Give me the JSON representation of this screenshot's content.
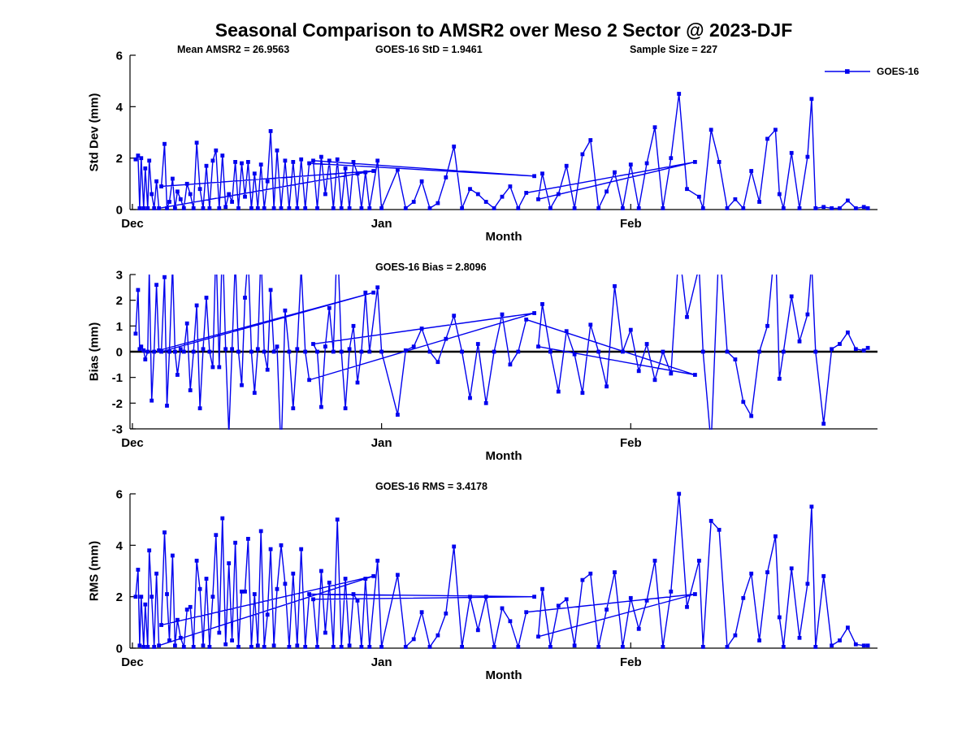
{
  "title": "Seasonal Comparison to AMSR2 over Meso 2 Sector @ 2023-DJF",
  "legend": {
    "label": "GOES-16"
  },
  "colors": {
    "line": "#0000EE",
    "axis": "#000000",
    "zero_line": "#000000"
  },
  "x_axis": {
    "label": "Month",
    "tick_labels": [
      "Dec",
      "Jan",
      "Feb"
    ],
    "tick_positions": [
      0,
      31,
      62
    ],
    "xlim": [
      -0.3,
      92.7
    ]
  },
  "samples": {
    "x": [
      0.4,
      0.7,
      0.9,
      1.1,
      1.4,
      1.6,
      1.9,
      2.1,
      2.4,
      2.7,
      3.0,
      3.3,
      30.0,
      3.6,
      4.0,
      4.3,
      4.6,
      5.0,
      5.3,
      5.6,
      6.0,
      6.4,
      6.8,
      7.2,
      7.6,
      8.0,
      8.4,
      8.8,
      9.2,
      9.6,
      10.0,
      10.4,
      10.8,
      11.2,
      11.6,
      12.0,
      12.4,
      12.8,
      13.2,
      13.6,
      14.0,
      14.4,
      14.8,
      15.2,
      15.6,
      16.0,
      16.4,
      16.8,
      17.2,
      17.6,
      18.0,
      18.5,
      19.0,
      19.5,
      20.0,
      20.5,
      21.0,
      21.5,
      22.0,
      50.0,
      22.5,
      23.0,
      23.5,
      24.0,
      24.5,
      25.0,
      25.5,
      26.0,
      26.5,
      27.0,
      27.5,
      28.0,
      28.5,
      29.0,
      29.5,
      30.5,
      31.0,
      33.0,
      34.0,
      35.0,
      36.0,
      37.0,
      38.0,
      39.0,
      40.0,
      41.0,
      42.0,
      43.0,
      44.0,
      45.0,
      46.0,
      47.0,
      48.0,
      49.0,
      70.0,
      50.5,
      51.0,
      52.0,
      53.0,
      54.0,
      55.0,
      56.0,
      57.0,
      58.0,
      59.0,
      60.0,
      61.0,
      62.0,
      63.0,
      64.0,
      65.0,
      66.0,
      67.0,
      68.0,
      69.0,
      70.5,
      71.0,
      72.0,
      73.0,
      74.0,
      75.0,
      76.0,
      77.0,
      78.0,
      79.0,
      80.0,
      80.5,
      81.0,
      82.0,
      83.0,
      84.0,
      84.5,
      85.0,
      86.0,
      87.0,
      88.0,
      89.0,
      90.0,
      91.0,
      91.5
    ]
  },
  "chart_data": [
    {
      "type": "line",
      "name": "std-dev",
      "ylabel": "Std Dev (mm)",
      "xlabel": "Month",
      "ylim": [
        0,
        6
      ],
      "yticks": [
        0,
        2,
        4,
        6
      ],
      "grid": false,
      "legend_position": "top-right-outside",
      "annotations": [
        {
          "text": "Mean AMSR2 = 26.9563"
        },
        {
          "text": "GOES-16 StD = 1.9461"
        },
        {
          "text": "Sample Size = 227"
        }
      ],
      "series": [
        {
          "name": "GOES-16",
          "values": [
            1.95,
            2.1,
            0.05,
            2.0,
            0.05,
            1.6,
            0.05,
            1.9,
            0.6,
            0.05,
            1.1,
            0.05,
            1.5,
            0.9,
            2.55,
            0.05,
            0.3,
            1.2,
            0.05,
            0.7,
            0.4,
            0.05,
            1.0,
            0.6,
            0.05,
            2.6,
            0.8,
            0.05,
            1.7,
            0.05,
            1.9,
            2.3,
            0.05,
            2.1,
            0.1,
            0.6,
            0.3,
            1.85,
            0.05,
            1.8,
            0.5,
            1.85,
            0.05,
            1.4,
            0.05,
            1.75,
            0.05,
            1.1,
            3.05,
            0.05,
            2.3,
            0.05,
            1.9,
            0.05,
            1.85,
            0.05,
            1.95,
            0.05,
            1.8,
            1.3,
            1.9,
            0.05,
            2.05,
            0.6,
            1.9,
            0.05,
            1.95,
            0.05,
            1.6,
            0.05,
            1.85,
            1.4,
            0.05,
            1.45,
            0.05,
            1.9,
            0.05,
            1.55,
            0.05,
            0.3,
            1.1,
            0.05,
            0.25,
            1.25,
            2.45,
            0.05,
            0.8,
            0.6,
            0.3,
            0.05,
            0.5,
            0.9,
            0.05,
            0.65,
            1.85,
            0.4,
            1.4,
            0.05,
            0.6,
            1.7,
            0.05,
            2.15,
            2.7,
            0.05,
            0.7,
            1.45,
            0.05,
            1.75,
            0.05,
            1.8,
            3.2,
            0.05,
            2.0,
            4.5,
            0.8,
            0.5,
            0.05,
            3.1,
            1.85,
            0.05,
            0.4,
            0.05,
            1.5,
            0.3,
            2.75,
            3.1,
            0.6,
            0.05,
            2.2,
            0.05,
            2.05,
            4.3,
            0.05,
            0.1,
            0.05,
            0.05,
            0.35,
            0.05,
            0.1,
            0.05
          ]
        }
      ]
    },
    {
      "type": "line",
      "name": "bias",
      "ylabel": "Bias (mm)",
      "xlabel": "Month",
      "ylim": [
        -3,
        3
      ],
      "yticks": [
        -3,
        -2,
        -1,
        0,
        1,
        2,
        3
      ],
      "grid": false,
      "zero_line": true,
      "annotations": [
        {
          "text": "GOES-16 Bias = 2.8096"
        }
      ],
      "series": [
        {
          "name": "GOES-16",
          "values": [
            0.7,
            2.4,
            0.1,
            0.2,
            0.05,
            -0.3,
            0.0,
            3.2,
            -1.9,
            0.0,
            2.6,
            0.05,
            2.3,
            0.0,
            2.9,
            -2.1,
            0.0,
            3.4,
            0.0,
            -0.9,
            0.1,
            0.0,
            1.1,
            -1.5,
            0.0,
            1.8,
            -2.2,
            0.1,
            2.1,
            0.0,
            -0.6,
            4.2,
            -0.6,
            4.5,
            0.1,
            -3.2,
            0.1,
            3.6,
            0.0,
            -1.3,
            2.1,
            3.8,
            0.0,
            -1.6,
            0.1,
            4.0,
            0.0,
            -0.7,
            2.4,
            0.0,
            0.2,
            -4.0,
            1.6,
            0.0,
            -2.2,
            0.1,
            3.3,
            0.0,
            -1.1,
            1.5,
            0.3,
            0.0,
            -2.15,
            0.2,
            1.7,
            0.0,
            4.6,
            0.0,
            -2.2,
            0.1,
            1.0,
            -1.2,
            0.0,
            2.3,
            0.0,
            2.5,
            0.0,
            -2.45,
            0.05,
            0.2,
            0.9,
            0.0,
            -0.4,
            0.5,
            1.4,
            0.0,
            -1.8,
            0.3,
            -2.0,
            0.0,
            1.45,
            -0.5,
            0.0,
            1.25,
            -0.9,
            0.2,
            1.85,
            0.0,
            -1.55,
            0.8,
            -0.1,
            -1.6,
            1.05,
            0.0,
            -1.35,
            2.55,
            0.0,
            0.85,
            -0.75,
            0.3,
            -1.1,
            0.0,
            -0.85,
            4.0,
            1.35,
            3.3,
            0.0,
            -3.6,
            4.3,
            0.0,
            -0.3,
            -1.95,
            -2.5,
            0.0,
            1.0,
            4.35,
            -1.05,
            0.0,
            2.15,
            0.4,
            1.45,
            3.5,
            0.0,
            -2.8,
            0.1,
            0.3,
            0.75,
            0.1,
            0.05,
            0.15
          ]
        }
      ]
    },
    {
      "type": "line",
      "name": "rms",
      "ylabel": "RMS (mm)",
      "xlabel": "Month",
      "ylim": [
        0,
        6
      ],
      "yticks": [
        0,
        2,
        4,
        6
      ],
      "grid": false,
      "annotations": [
        {
          "text": "GOES-16 RMS = 3.4178"
        }
      ],
      "series": [
        {
          "name": "GOES-16",
          "values": [
            2.0,
            3.05,
            0.1,
            2.0,
            0.05,
            1.7,
            0.05,
            3.8,
            2.0,
            0.05,
            2.9,
            0.1,
            2.8,
            0.9,
            4.5,
            2.1,
            0.3,
            3.6,
            0.1,
            1.1,
            0.4,
            0.05,
            1.5,
            1.6,
            0.05,
            3.4,
            2.3,
            0.1,
            2.7,
            0.05,
            2.0,
            4.4,
            0.6,
            5.05,
            0.15,
            3.3,
            0.3,
            4.1,
            0.05,
            2.2,
            2.2,
            4.25,
            0.05,
            2.1,
            0.1,
            4.55,
            0.05,
            1.3,
            3.85,
            0.1,
            2.3,
            4.0,
            2.5,
            0.05,
            2.9,
            0.1,
            3.85,
            0.05,
            2.1,
            2.0,
            1.9,
            0.05,
            3.0,
            0.6,
            2.55,
            0.05,
            5.0,
            0.05,
            2.7,
            0.1,
            2.1,
            1.85,
            0.05,
            2.7,
            0.05,
            3.4,
            0.05,
            2.85,
            0.05,
            0.35,
            1.4,
            0.05,
            0.5,
            1.35,
            3.95,
            0.05,
            2.0,
            0.7,
            2.0,
            0.05,
            1.55,
            1.05,
            0.05,
            1.4,
            2.1,
            0.45,
            2.3,
            0.05,
            1.65,
            1.9,
            0.1,
            2.65,
            2.9,
            0.05,
            1.5,
            2.95,
            0.05,
            1.95,
            0.75,
            1.85,
            3.4,
            0.05,
            2.2,
            6.0,
            1.6,
            3.4,
            0.05,
            4.95,
            4.6,
            0.05,
            0.5,
            1.95,
            2.9,
            0.3,
            2.95,
            4.35,
            1.2,
            0.05,
            3.1,
            0.4,
            2.5,
            5.5,
            0.05,
            2.8,
            0.1,
            0.3,
            0.8,
            0.15,
            0.1,
            0.1
          ]
        }
      ]
    }
  ]
}
